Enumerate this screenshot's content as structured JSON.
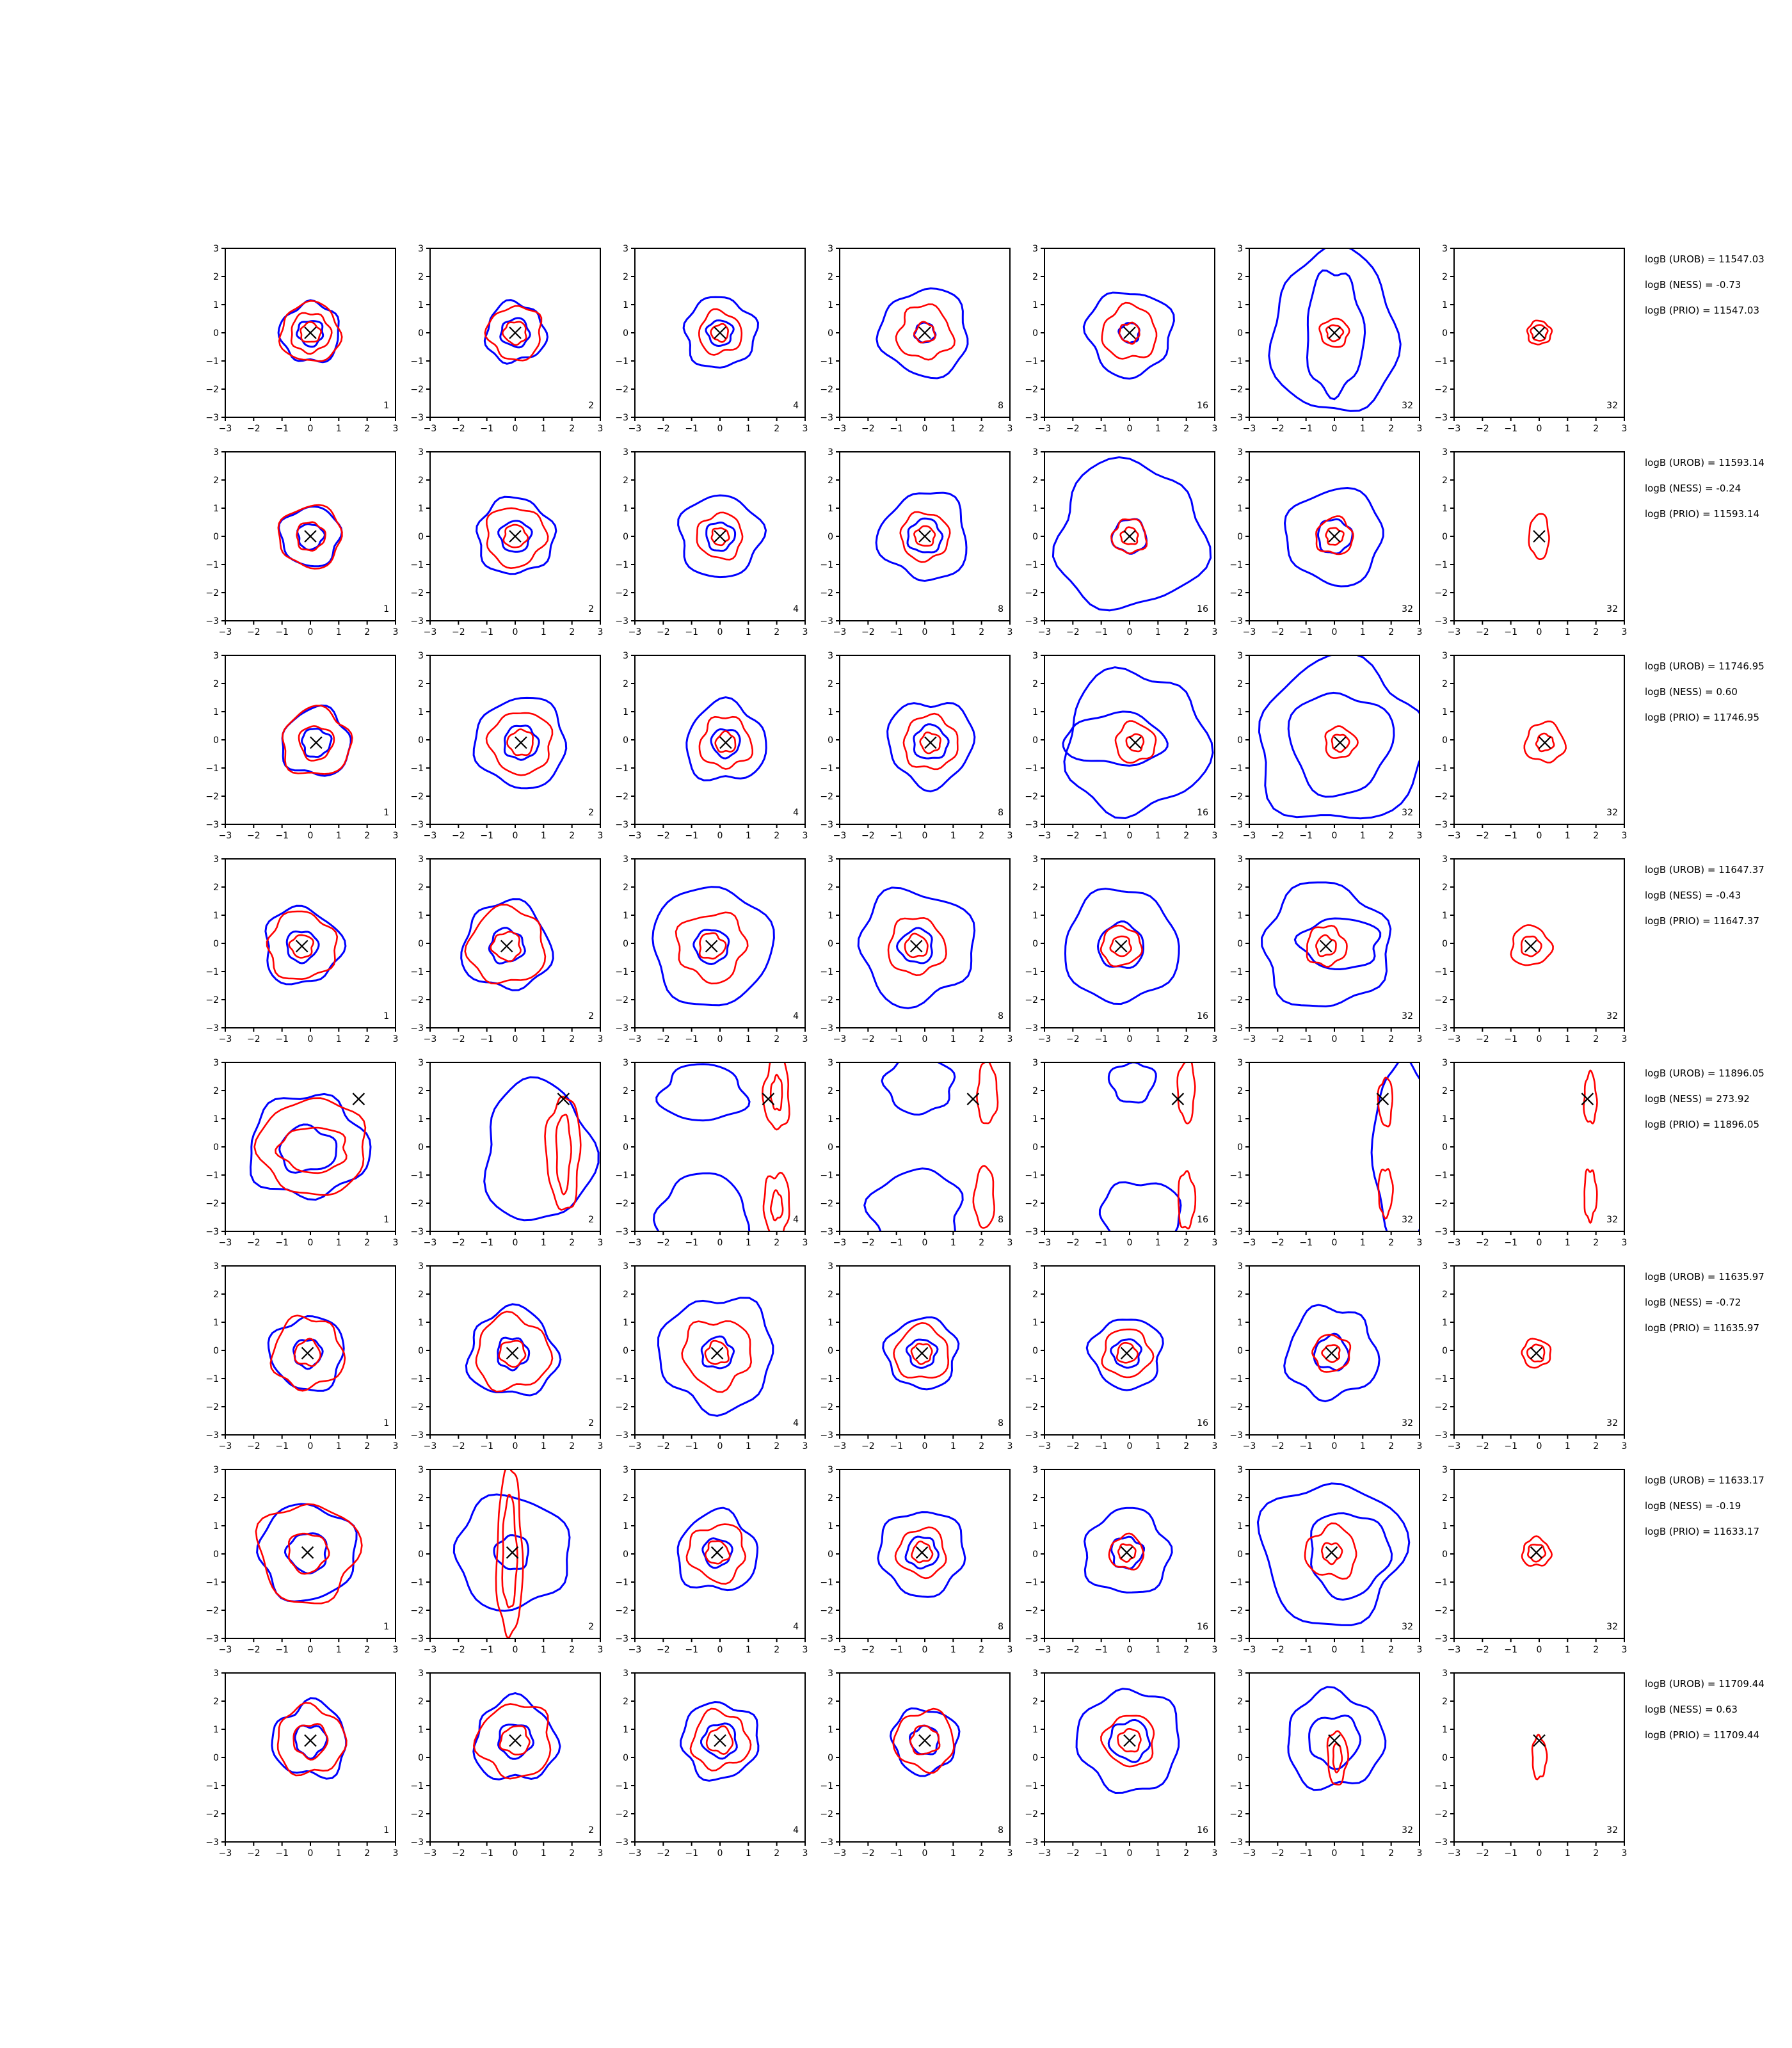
{
  "chart_data": {
    "type": "contour",
    "layout": {
      "rows": 8,
      "cols": 7
    },
    "axes": {
      "xlim": [
        -3,
        3
      ],
      "ylim": [
        -3,
        3
      ],
      "ticks": [
        "−3",
        "−2",
        "−1",
        "0",
        "1",
        "2",
        "3"
      ],
      "tick_values": [
        -3,
        -2,
        -1,
        0,
        1,
        2,
        3
      ]
    },
    "colors": {
      "blue": "#0000ff",
      "red": "#ff0000",
      "marker": "#000000"
    },
    "column_labels": [
      "1",
      "2",
      "4",
      "8",
      "16",
      "32",
      "32"
    ],
    "rows": [
      {
        "marker": [
          0,
          0
        ],
        "stats": [
          "logB (UROB) = 11547.03",
          "logB (NESS) = -0.73",
          "logB (PRIO) = 11547.03"
        ],
        "panels": [
          {
            "blue": [
              1.05,
              0.45
            ],
            "red": [
              1.05,
              0.7,
              0.35
            ]
          },
          {
            "blue": [
              1.05,
              0.5
            ],
            "red": [
              0.95,
              0.4
            ]
          },
          {
            "blue": [
              1.25,
              0.45
            ],
            "red": [
              0.75,
              0.3
            ]
          },
          {
            "blue": [
              1.55,
              0.35
            ],
            "red": [
              0.95,
              0.35
            ]
          },
          {
            "blue": [
              1.5,
              0.35
            ],
            "red": [
              0.95,
              0.35
            ]
          },
          {
            "blue": [
              {
                "rx": 2.2,
                "ry": 2.9
              },
              {
                "rx": 1.0,
                "ry": 2.2
              }
            ],
            "red": [
              0.5,
              0.28
            ]
          },
          {
            "blue": [],
            "red": [
              0.42,
              0.28
            ]
          }
        ]
      },
      {
        "marker": [
          0,
          0
        ],
        "stats": [
          "logB (UROB) = 11593.14",
          "logB (NESS) = -0.24",
          "logB (PRIO) = 11593.14"
        ],
        "panels": [
          {
            "blue": [
              1.05,
              0.45
            ],
            "red": [
              1.1,
              0.5
            ]
          },
          {
            "blue": [
              1.35,
              0.55
            ],
            "red": [
              1.05,
              0.4
            ]
          },
          {
            "blue": [
              1.45,
              0.5
            ],
            "red": [
              0.8,
              0.3
            ]
          },
          {
            "blue": [
              1.55,
              0.6
            ],
            "red": [
              0.85,
              0.35
            ]
          },
          {
            "blue": [
              2.6,
              0.6
            ],
            "red": [
              0.6,
              0.3
            ]
          },
          {
            "blue": [
              1.7,
              0.6
            ],
            "red": [
              0.65,
              0.3
            ]
          },
          {
            "blue": [],
            "red": [
              {
                "rx": 0.35,
                "ry": 0.8,
                "cx": 0,
                "cy": 0
              }
            ]
          }
        ]
      },
      {
        "marker": [
          0.2,
          -0.1
        ],
        "stats": [
          "logB (UROB) = 11746.95",
          "logB (NESS) = 0.60",
          "logB (PRIO) = 11746.95"
        ],
        "panels": [
          {
            "blue": [
              1.2,
              0.5
            ],
            "red": [
              1.2,
              0.6
            ]
          },
          {
            "blue": [
              1.6,
              0.6
            ],
            "red": [
              1.1,
              0.45
            ]
          },
          {
            "blue": [
              1.4,
              0.5
            ],
            "red": [
              0.9,
              0.35
            ]
          },
          {
            "blue": [
              1.5,
              0.6
            ],
            "red": [
              0.95,
              0.35
            ]
          },
          {
            "blue": [
              2.5,
              {
                "rx": 1.8,
                "ry": 0.9,
                "cx": -0.5,
                "cy": 0
              }
            ],
            "red": [
              0.7,
              0.3
            ]
          },
          {
            "blue": [
              2.9,
              1.8
            ],
            "red": [
              0.55,
              0.3
            ]
          },
          {
            "blue": [],
            "red": [
              0.7,
              0.3
            ]
          }
        ]
      },
      {
        "marker": [
          -0.3,
          -0.1
        ],
        "stats": [
          "logB (UROB) = 11647.37",
          "logB (NESS) = -0.43",
          "logB (PRIO) = 11647.37"
        ],
        "panels": [
          {
            "blue": [
              1.35,
              0.55
            ],
            "red": [
              1.2,
              0.4
            ]
          },
          {
            "blue": [
              1.55,
              0.6
            ],
            "red": [
              1.35,
              0.5
            ]
          },
          {
            "blue": [
              2.1,
              0.6
            ],
            "red": [
              1.2,
              0.45
            ]
          },
          {
            "blue": [
              2.0,
              0.6
            ],
            "red": [
              1.0,
              0.4
            ]
          },
          {
            "blue": [
              2.0,
              0.8
            ],
            "red": [
              0.7,
              0.35
            ]
          },
          {
            "blue": [
              2.2,
              {
                "rx": 1.4,
                "ry": 0.9,
                "cx": 0.2,
                "cy": 0
              }
            ],
            "red": [
              0.7,
              0.35
            ]
          },
          {
            "blue": [],
            "red": [
              0.7,
              0.35
            ]
          }
        ]
      },
      {
        "marker": [
          1.7,
          1.7
        ],
        "stats": [
          "logB (UROB) = 11896.05",
          "logB (NESS) = 273.92",
          "logB (PRIO) = 11896.05"
        ],
        "panels": [
          {
            "blue": [
              {
                "rx": 2.1,
                "ry": 1.8,
                "cx": -0.1,
                "cy": 0
              },
              {
                "rx": 1.0,
                "ry": 0.8,
                "cx": -0.1,
                "cy": -0.1
              }
            ],
            "red": [
              {
                "rx": 1.9,
                "ry": 1.7,
                "cx": 0.1,
                "cy": 0
              },
              {
                "rx": 1.2,
                "ry": 0.8,
                "cx": 0.1,
                "cy": -0.1
              }
            ]
          },
          {
            "blue": [
              {
                "rx": 1.9,
                "ry": 2.5,
                "cx": 0.8,
                "cy": -0.2
              }
            ],
            "red": [
              {
                "rx": 0.6,
                "ry": 2.0,
                "cx": 1.7,
                "cy": -0.2
              },
              {
                "rx": 0.25,
                "ry": 1.4,
                "cx": 1.7,
                "cy": -0.2
              }
            ]
          },
          {
            "blue": [
              {
                "rx": 1.5,
                "ry": 1.0,
                "cx": -0.6,
                "cy": 1.9
              },
              {
                "rx": 1.6,
                "ry": 1.4,
                "cx": -0.6,
                "cy": -2.4
              }
            ],
            "red": [
              {
                "rx": 0.45,
                "ry": 1.3,
                "cx": 2.0,
                "cy": 1.9
              },
              {
                "rx": 0.2,
                "ry": 0.6,
                "cx": 2.0,
                "cy": 1.9
              },
              {
                "rx": 0.45,
                "ry": 1.2,
                "cx": 2.0,
                "cy": -2.1
              },
              {
                "rx": 0.2,
                "ry": 0.5,
                "cx": 2.0,
                "cy": -2.1
              }
            ]
          },
          {
            "blue": [
              {
                "rx": 1.2,
                "ry": 1.0,
                "cx": -0.2,
                "cy": 2.2
              },
              {
                "rx": 1.6,
                "ry": 1.5,
                "cx": -0.3,
                "cy": -2.3
              }
            ],
            "red": [
              {
                "rx": 0.35,
                "ry": 1.1,
                "cx": 2.2,
                "cy": 1.9
              },
              {
                "rx": 0.35,
                "ry": 1.1,
                "cx": 2.1,
                "cy": -1.8
              }
            ]
          },
          {
            "blue": [
              {
                "rx": 0.8,
                "ry": 0.7,
                "cx": 0.1,
                "cy": 2.3
              },
              {
                "rx": 1.4,
                "ry": 1.2,
                "cx": 0.4,
                "cy": -2.4
              }
            ],
            "red": [
              {
                "rx": 0.3,
                "ry": 1.1,
                "cx": 2.0,
                "cy": 2.0
              },
              {
                "rx": 0.3,
                "ry": 1.0,
                "cx": 2.0,
                "cy": -1.9
              }
            ]
          },
          {
            "blue": [
              {
                "rx": 1.0,
                "ry": 3.3,
                "cx": 2.4,
                "cy": -0.2
              }
            ],
            "red": [
              {
                "rx": 0.25,
                "ry": 0.85,
                "cx": 1.8,
                "cy": 1.6
              },
              {
                "rx": 0.25,
                "ry": 0.85,
                "cx": 1.8,
                "cy": -1.6
              }
            ]
          },
          {
            "blue": [],
            "red": [
              {
                "rx": 0.22,
                "ry": 0.9,
                "cx": 1.8,
                "cy": 1.7
              },
              {
                "rx": 0.22,
                "ry": 0.9,
                "cx": 1.8,
                "cy": -1.7
              }
            ]
          }
        ]
      },
      {
        "marker": [
          -0.1,
          -0.1
        ],
        "stats": [
          "logB (UROB) = 11635.97",
          "logB (NESS) = -0.72",
          "logB (PRIO) = 11635.97"
        ],
        "panels": [
          {
            "blue": [
              1.3,
              0.5
            ],
            "red": [
              1.25,
              0.45
            ]
          },
          {
            "blue": [
              1.55,
              0.55
            ],
            "red": [
              1.3,
              0.45
            ]
          },
          {
            "blue": [
              2.0,
              0.55
            ],
            "red": [
              1.2,
              0.4
            ]
          },
          {
            "blue": [
              1.25,
              0.5
            ],
            "red": [
              0.95,
              0.35
            ]
          },
          {
            "blue": [
              1.25,
              0.5
            ],
            "red": [
              0.85,
              0.35
            ]
          },
          {
            "blue": [
              1.6,
              0.6
            ],
            "red": [
              0.65,
              0.3
            ]
          },
          {
            "blue": [],
            "red": [
              0.5,
              0.3
            ]
          }
        ]
      },
      {
        "marker": [
          -0.1,
          0.05
        ],
        "stats": [
          "logB (UROB) = 11633.17",
          "logB (NESS) = -0.19",
          "logB (PRIO) = 11633.17"
        ],
        "panels": [
          {
            "blue": [
              1.7,
              0.7
            ],
            "red": [
              1.75,
              0.7
            ]
          },
          {
            "blue": [
              2.0,
              0.6
            ],
            "red": [
              {
                "rx": 0.45,
                "ry": 3.0,
                "cx": -0.2,
                "cy": 0
              },
              {
                "rx": 0.25,
                "ry": 2.0,
                "cx": -0.2,
                "cy": 0
              }
            ]
          },
          {
            "blue": [
              1.4,
              0.5
            ],
            "red": [
              1.0,
              0.4
            ]
          },
          {
            "blue": [
              1.5,
              0.55
            ],
            "red": [
              0.85,
              0.35
            ]
          },
          {
            "blue": [
              1.5,
              0.55
            ],
            "red": [
              0.6,
              0.3
            ]
          },
          {
            "blue": [
              2.5,
              {
                "rx": 1.4,
                "ry": 1.5,
                "cx": 0.5,
                "cy": 0
              }
            ],
            "red": [
              0.9,
              0.35
            ]
          },
          {
            "blue": [],
            "red": [
              0.5,
              0.3
            ]
          }
        ]
      },
      {
        "marker": [
          0,
          0.6
        ],
        "stats": [
          "logB (UROB) = 11709.44",
          "logB (NESS) = 0.63",
          "logB (PRIO) = 11709.44"
        ],
        "panels": [
          {
            "blue": [
              1.3,
              0.55
            ],
            "red": [
              1.2,
              0.6
            ]
          },
          {
            "blue": [
              1.45,
              0.6
            ],
            "red": [
              1.3,
              0.5
            ]
          },
          {
            "blue": [
              1.35,
              0.6
            ],
            "red": [
              1.0,
              0.45
            ]
          },
          {
            "blue": [
              1.15,
              0.5
            ],
            "red": [
              1.05,
              0.5
            ]
          },
          {
            "blue": [
              1.8,
              0.7
            ],
            "red": [
              0.9,
              0.4
            ]
          },
          {
            "blue": [
              1.7,
              0.9
            ],
            "red": [
              {
                "rx": 0.35,
                "ry": 0.95,
                "cx": 0.1,
                "cy": 0
              },
              {
                "rx": 0.15,
                "ry": 0.5,
                "cx": 0.1,
                "cy": 0
              }
            ]
          },
          {
            "blue": [],
            "red": [
              {
                "rx": 0.25,
                "ry": 0.75,
                "cx": 0,
                "cy": 0
              }
            ]
          }
        ]
      }
    ]
  }
}
